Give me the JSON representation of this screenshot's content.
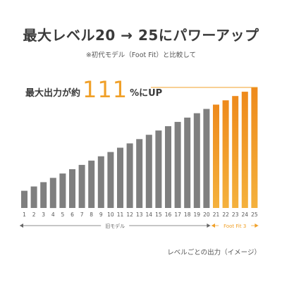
{
  "header": {
    "title": "最大レベル20 → 25にパワーアップ",
    "subtitle": "※初代モデル（Foot Fit）と比較して"
  },
  "highlight": {
    "prefix": "最大出力が約",
    "number": "111",
    "suffix": "%にUP"
  },
  "caption": "レベルごとの出力（イメージ）",
  "colors": {
    "old_bar": "#7f7f7f",
    "new_bar_start": "#f4b13d",
    "new_bar_end": "#ee8a1c",
    "highlight": "#f0a028",
    "old_bracket": "#666666",
    "new_bracket": "#f0a028"
  },
  "chart_data": {
    "type": "bar",
    "categories": [
      "1",
      "2",
      "3",
      "4",
      "5",
      "6",
      "7",
      "8",
      "9",
      "10",
      "11",
      "12",
      "13",
      "14",
      "15",
      "16",
      "17",
      "18",
      "19",
      "20",
      "21",
      "22",
      "23",
      "24",
      "25"
    ],
    "values": [
      4,
      5,
      6,
      7,
      8,
      9,
      10,
      11,
      12,
      13,
      14,
      15,
      16,
      17,
      18,
      19,
      20,
      21,
      22,
      23,
      24,
      25,
      26,
      27,
      28
    ],
    "ylim": [
      0,
      28
    ],
    "grid": false,
    "groups": [
      {
        "label": "旧モデル",
        "from": 1,
        "to": 20
      },
      {
        "label": "Foot Fit 3",
        "from": 21,
        "to": 25
      }
    ]
  }
}
